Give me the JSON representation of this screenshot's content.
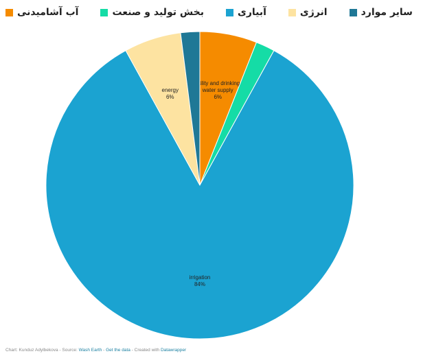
{
  "chart_data": {
    "type": "pie",
    "series": [
      {
        "name": "آب آشامیدنی",
        "color": "#f58b00"
      },
      {
        "name": "بخش تولید و صنعت",
        "color": "#15dca6"
      },
      {
        "name": "آبیاری",
        "color": "#1ba3d1"
      },
      {
        "name": "انرژی",
        "color": "#fde3a1"
      },
      {
        "name": "سایر موارد",
        "color": "#1f7896"
      }
    ],
    "values": [
      6,
      2,
      84,
      6,
      2
    ],
    "slice_labels": [
      "utility and drinking water supply",
      null,
      "irrigation",
      "energy",
      null
    ],
    "value_labels": [
      "6%",
      null,
      "84%",
      "6%",
      null
    ],
    "legend": "top",
    "footer": [
      {
        "text": "Chart: Kunduz Adylbekova - Source: ",
        "link": false
      },
      {
        "text": "Wash Earth",
        "link": true
      },
      {
        "text": " - ",
        "link": false
      },
      {
        "text": "Get the data",
        "link": true
      },
      {
        "text": " - Created with ",
        "link": false
      },
      {
        "text": "Datawrapper",
        "link": true
      }
    ]
  }
}
